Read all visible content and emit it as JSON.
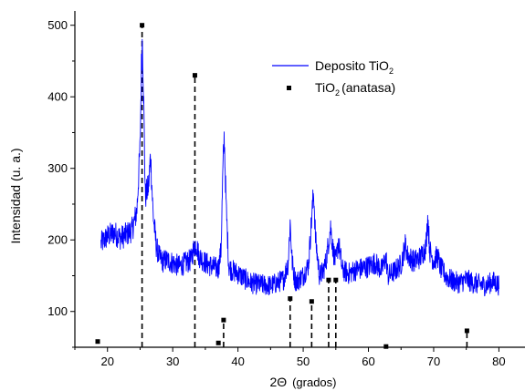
{
  "chart_data": {
    "type": "line",
    "xlabel_main": "2Θ",
    "xlabel_unit": "(grados)",
    "ylabel": "Intensidad (u. a.)",
    "xlim": [
      15,
      84
    ],
    "ylim": [
      50,
      520
    ],
    "xticks": [
      20,
      30,
      40,
      50,
      60,
      70,
      80
    ],
    "yticks": [
      100,
      200,
      300,
      400,
      500
    ],
    "colors": {
      "deposit": "#0000ff",
      "reference": "#000000"
    },
    "legend": {
      "position": "top-right",
      "deposit_prefix": "Deposito TiO",
      "deposit_sub": "2",
      "ref_prefix": "TiO",
      "ref_sub": "2",
      "ref_suffix": "(anatasa)"
    },
    "series": [
      {
        "name": "Deposito TiO2",
        "style": "noisy-line",
        "x": [
          19.0,
          20.0,
          21.0,
          22.0,
          23.0,
          23.8,
          24.5,
          25.0,
          25.2,
          25.35,
          25.5,
          25.8,
          26.3,
          26.6,
          27.0,
          27.5,
          28.0,
          28.5,
          29.0,
          30.0,
          31.0,
          32.0,
          32.8,
          33.3,
          33.6,
          34.0,
          35.0,
          36.0,
          37.0,
          37.4,
          37.7,
          37.9,
          38.2,
          38.6,
          39.0,
          40.0,
          41.0,
          42.0,
          43.0,
          44.0,
          45.0,
          46.0,
          47.0,
          47.7,
          48.0,
          48.3,
          48.7,
          49.0,
          50.0,
          50.8,
          51.3,
          51.6,
          51.9,
          52.5,
          53.0,
          53.5,
          53.9,
          54.2,
          54.6,
          55.0,
          55.4,
          56.0,
          57.0,
          58.0,
          59.0,
          60.0,
          61.0,
          62.0,
          62.7,
          63.0,
          64.0,
          65.0,
          65.7,
          66.0,
          67.0,
          68.0,
          68.8,
          69.1,
          69.4,
          70.0,
          70.6,
          71.0,
          72.0,
          73.0,
          74.0,
          75.0,
          76.0,
          77.0,
          78.0,
          79.0,
          80.0
        ],
        "y": [
          195,
          205,
          210,
          203,
          208,
          215,
          240,
          330,
          440,
          483,
          420,
          260,
          275,
          318,
          235,
          190,
          175,
          170,
          172,
          168,
          163,
          168,
          172,
          190,
          195,
          178,
          168,
          163,
          160,
          185,
          300,
          345,
          245,
          163,
          158,
          153,
          146,
          140,
          138,
          137,
          136,
          140,
          145,
          168,
          225,
          170,
          145,
          142,
          150,
          165,
          230,
          268,
          200,
          150,
          155,
          170,
          198,
          218,
          185,
          168,
          198,
          158,
          153,
          158,
          160,
          163,
          168,
          158,
          175,
          150,
          156,
          166,
          195,
          178,
          170,
          176,
          190,
          232,
          185,
          170,
          178,
          162,
          148,
          142,
          140,
          145,
          140,
          138,
          136,
          142,
          137
        ]
      },
      {
        "name": "TiO2 (anatasa)",
        "style": "sticks",
        "x": [
          18.5,
          25.3,
          33.4,
          37.0,
          37.8,
          48.0,
          51.3,
          53.9,
          55.0,
          62.7,
          75.1
        ],
        "y": [
          58,
          500,
          430,
          56,
          88,
          118,
          114,
          144,
          144,
          51,
          73
        ]
      }
    ]
  }
}
